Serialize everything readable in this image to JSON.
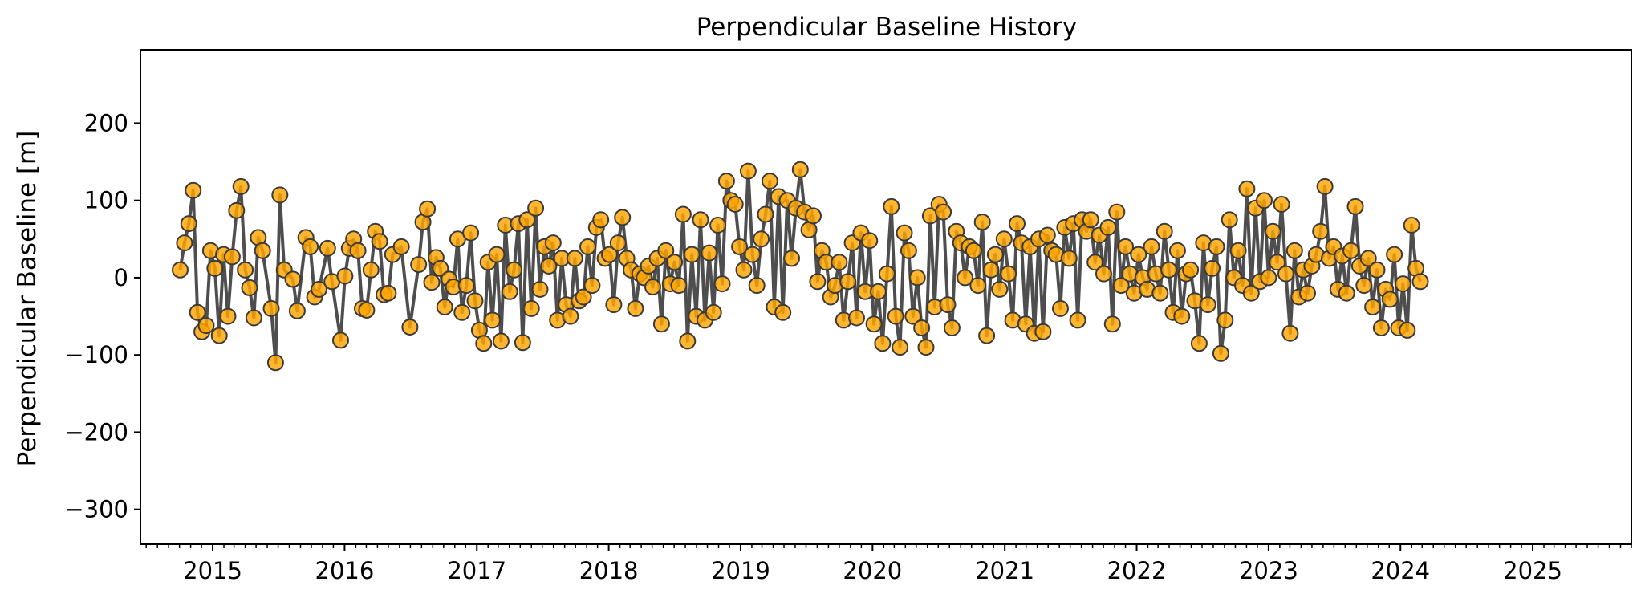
{
  "chart_data": {
    "type": "line",
    "title": "Perpendicular Baseline History",
    "xlabel": "",
    "ylabel": "Perpendicular Baseline [m]",
    "x_ticks": [
      "2015",
      "2016",
      "2017",
      "2018",
      "2019",
      "2020",
      "2021",
      "2022",
      "2023",
      "2024",
      "2025"
    ],
    "y_ticks": [
      200,
      100,
      0,
      -100,
      -200,
      -300
    ],
    "xlim": [
      "2014-06-15",
      "2025-10-01"
    ],
    "ylim": [
      -345,
      295
    ],
    "grid": false,
    "legend": "none",
    "colors": {
      "marker_fill": "#FFA500",
      "marker_edge": "#3a3a3a",
      "line": "#444444"
    },
    "series": [
      {
        "points": [
          [
            "2014-10-03",
            10
          ],
          [
            "2014-10-15",
            45
          ],
          [
            "2014-10-27",
            70
          ],
          [
            "2014-11-08",
            113
          ],
          [
            "2014-11-20",
            -45
          ],
          [
            "2014-12-02",
            -70
          ],
          [
            "2014-12-14",
            -62
          ],
          [
            "2014-12-26",
            35
          ],
          [
            "2015-01-07",
            12
          ],
          [
            "2015-01-19",
            -75
          ],
          [
            "2015-01-31",
            30
          ],
          [
            "2015-02-12",
            -50
          ],
          [
            "2015-02-24",
            27
          ],
          [
            "2015-03-08",
            87
          ],
          [
            "2015-03-20",
            118
          ],
          [
            "2015-04-01",
            10
          ],
          [
            "2015-04-13",
            -13
          ],
          [
            "2015-04-25",
            -52
          ],
          [
            "2015-05-07",
            52
          ],
          [
            "2015-05-19",
            35
          ],
          [
            "2015-06-12",
            -40
          ],
          [
            "2015-06-24",
            -110
          ],
          [
            "2015-07-06",
            107
          ],
          [
            "2015-07-18",
            10
          ],
          [
            "2015-08-11",
            -2
          ],
          [
            "2015-08-23",
            -43
          ],
          [
            "2015-09-16",
            52
          ],
          [
            "2015-09-28",
            40
          ],
          [
            "2015-10-10",
            -25
          ],
          [
            "2015-10-22",
            -15
          ],
          [
            "2015-11-15",
            38
          ],
          [
            "2015-11-27",
            -5
          ],
          [
            "2015-12-21",
            -81
          ],
          [
            "2016-01-02",
            2
          ],
          [
            "2016-01-14",
            38
          ],
          [
            "2016-01-26",
            50
          ],
          [
            "2016-02-07",
            35
          ],
          [
            "2016-02-19",
            -40
          ],
          [
            "2016-03-02",
            -42
          ],
          [
            "2016-03-14",
            10
          ],
          [
            "2016-03-26",
            60
          ],
          [
            "2016-04-07",
            47
          ],
          [
            "2016-04-19",
            -22
          ],
          [
            "2016-05-01",
            -20
          ],
          [
            "2016-05-13",
            30
          ],
          [
            "2016-06-06",
            40
          ],
          [
            "2016-06-30",
            -64
          ],
          [
            "2016-07-24",
            17
          ],
          [
            "2016-08-05",
            72
          ],
          [
            "2016-08-17",
            89
          ],
          [
            "2016-08-29",
            -6
          ],
          [
            "2016-09-10",
            26
          ],
          [
            "2016-09-22",
            12
          ],
          [
            "2016-10-04",
            -38
          ],
          [
            "2016-10-16",
            -2
          ],
          [
            "2016-10-28",
            -12
          ],
          [
            "2016-11-09",
            50
          ],
          [
            "2016-11-21",
            -45
          ],
          [
            "2016-12-03",
            -10
          ],
          [
            "2016-12-15",
            58
          ],
          [
            "2016-12-27",
            -30
          ],
          [
            "2017-01-08",
            -68
          ],
          [
            "2017-01-20",
            -85
          ],
          [
            "2017-02-01",
            20
          ],
          [
            "2017-02-13",
            -55
          ],
          [
            "2017-02-25",
            30
          ],
          [
            "2017-03-09",
            -82
          ],
          [
            "2017-03-21",
            68
          ],
          [
            "2017-04-02",
            -18
          ],
          [
            "2017-04-14",
            10
          ],
          [
            "2017-04-26",
            70
          ],
          [
            "2017-05-08",
            -84
          ],
          [
            "2017-05-20",
            75
          ],
          [
            "2017-06-01",
            -40
          ],
          [
            "2017-06-13",
            90
          ],
          [
            "2017-06-25",
            -15
          ],
          [
            "2017-07-07",
            40
          ],
          [
            "2017-07-19",
            15
          ],
          [
            "2017-07-31",
            45
          ],
          [
            "2017-08-12",
            -55
          ],
          [
            "2017-08-24",
            25
          ],
          [
            "2017-09-05",
            -35
          ],
          [
            "2017-09-17",
            -50
          ],
          [
            "2017-09-29",
            25
          ],
          [
            "2017-10-11",
            -30
          ],
          [
            "2017-10-23",
            -25
          ],
          [
            "2017-11-04",
            40
          ],
          [
            "2017-11-16",
            -10
          ],
          [
            "2017-11-28",
            65
          ],
          [
            "2017-12-10",
            75
          ],
          [
            "2017-12-22",
            25
          ],
          [
            "2018-01-03",
            30
          ],
          [
            "2018-01-15",
            -35
          ],
          [
            "2018-01-27",
            45
          ],
          [
            "2018-02-08",
            78
          ],
          [
            "2018-02-20",
            25
          ],
          [
            "2018-03-04",
            10
          ],
          [
            "2018-03-16",
            -40
          ],
          [
            "2018-03-28",
            5
          ],
          [
            "2018-04-09",
            0
          ],
          [
            "2018-04-21",
            15
          ],
          [
            "2018-05-03",
            -12
          ],
          [
            "2018-05-15",
            25
          ],
          [
            "2018-05-27",
            -60
          ],
          [
            "2018-06-08",
            35
          ],
          [
            "2018-06-20",
            -8
          ],
          [
            "2018-07-02",
            20
          ],
          [
            "2018-07-14",
            -10
          ],
          [
            "2018-07-26",
            82
          ],
          [
            "2018-08-07",
            -82
          ],
          [
            "2018-08-19",
            30
          ],
          [
            "2018-08-31",
            -50
          ],
          [
            "2018-09-12",
            75
          ],
          [
            "2018-09-24",
            -55
          ],
          [
            "2018-10-06",
            32
          ],
          [
            "2018-10-18",
            -45
          ],
          [
            "2018-10-30",
            68
          ],
          [
            "2018-11-11",
            -8
          ],
          [
            "2018-11-23",
            125
          ],
          [
            "2018-12-05",
            100
          ],
          [
            "2018-12-17",
            95
          ],
          [
            "2018-12-29",
            40
          ],
          [
            "2019-01-10",
            10
          ],
          [
            "2019-01-22",
            138
          ],
          [
            "2019-02-03",
            30
          ],
          [
            "2019-02-15",
            -10
          ],
          [
            "2019-02-27",
            50
          ],
          [
            "2019-03-11",
            82
          ],
          [
            "2019-03-23",
            125
          ],
          [
            "2019-04-04",
            -38
          ],
          [
            "2019-04-16",
            105
          ],
          [
            "2019-04-28",
            -45
          ],
          [
            "2019-05-10",
            100
          ],
          [
            "2019-05-22",
            25
          ],
          [
            "2019-06-03",
            90
          ],
          [
            "2019-06-15",
            140
          ],
          [
            "2019-06-27",
            85
          ],
          [
            "2019-07-09",
            62
          ],
          [
            "2019-07-21",
            80
          ],
          [
            "2019-08-02",
            -5
          ],
          [
            "2019-08-14",
            35
          ],
          [
            "2019-08-26",
            20
          ],
          [
            "2019-09-07",
            -25
          ],
          [
            "2019-09-19",
            -10
          ],
          [
            "2019-10-01",
            20
          ],
          [
            "2019-10-13",
            -55
          ],
          [
            "2019-10-25",
            -5
          ],
          [
            "2019-11-06",
            45
          ],
          [
            "2019-11-18",
            -52
          ],
          [
            "2019-11-30",
            58
          ],
          [
            "2019-12-12",
            -18
          ],
          [
            "2019-12-24",
            48
          ],
          [
            "2020-01-05",
            -60
          ],
          [
            "2020-01-17",
            -18
          ],
          [
            "2020-01-29",
            -85
          ],
          [
            "2020-02-10",
            5
          ],
          [
            "2020-02-22",
            92
          ],
          [
            "2020-03-05",
            -50
          ],
          [
            "2020-03-17",
            -90
          ],
          [
            "2020-03-29",
            58
          ],
          [
            "2020-04-10",
            35
          ],
          [
            "2020-04-22",
            -50
          ],
          [
            "2020-05-04",
            0
          ],
          [
            "2020-05-16",
            -65
          ],
          [
            "2020-05-28",
            -90
          ],
          [
            "2020-06-09",
            80
          ],
          [
            "2020-06-21",
            -38
          ],
          [
            "2020-07-03",
            95
          ],
          [
            "2020-07-15",
            85
          ],
          [
            "2020-07-27",
            -35
          ],
          [
            "2020-08-08",
            -65
          ],
          [
            "2020-08-20",
            60
          ],
          [
            "2020-09-01",
            45
          ],
          [
            "2020-09-13",
            0
          ],
          [
            "2020-09-25",
            40
          ],
          [
            "2020-10-07",
            35
          ],
          [
            "2020-10-19",
            -10
          ],
          [
            "2020-10-31",
            72
          ],
          [
            "2020-11-12",
            -75
          ],
          [
            "2020-11-24",
            10
          ],
          [
            "2020-12-06",
            30
          ],
          [
            "2020-12-18",
            -15
          ],
          [
            "2020-12-30",
            50
          ],
          [
            "2021-01-11",
            5
          ],
          [
            "2021-01-23",
            -55
          ],
          [
            "2021-02-04",
            70
          ],
          [
            "2021-02-16",
            45
          ],
          [
            "2021-02-28",
            -60
          ],
          [
            "2021-03-12",
            40
          ],
          [
            "2021-03-24",
            -72
          ],
          [
            "2021-04-05",
            50
          ],
          [
            "2021-04-17",
            -70
          ],
          [
            "2021-04-29",
            55
          ],
          [
            "2021-05-11",
            35
          ],
          [
            "2021-05-23",
            30
          ],
          [
            "2021-06-04",
            -40
          ],
          [
            "2021-06-16",
            65
          ],
          [
            "2021-06-28",
            25
          ],
          [
            "2021-07-10",
            70
          ],
          [
            "2021-07-22",
            -55
          ],
          [
            "2021-08-03",
            75
          ],
          [
            "2021-08-15",
            60
          ],
          [
            "2021-08-27",
            75
          ],
          [
            "2021-09-08",
            20
          ],
          [
            "2021-09-20",
            55
          ],
          [
            "2021-10-02",
            5
          ],
          [
            "2021-10-14",
            65
          ],
          [
            "2021-10-26",
            -60
          ],
          [
            "2021-11-07",
            85
          ],
          [
            "2021-11-19",
            -10
          ],
          [
            "2021-12-01",
            40
          ],
          [
            "2021-12-13",
            5
          ],
          [
            "2021-12-25",
            -20
          ],
          [
            "2022-01-06",
            30
          ],
          [
            "2022-01-18",
            0
          ],
          [
            "2022-01-30",
            -15
          ],
          [
            "2022-02-11",
            40
          ],
          [
            "2022-02-23",
            5
          ],
          [
            "2022-03-07",
            -20
          ],
          [
            "2022-03-19",
            60
          ],
          [
            "2022-03-31",
            10
          ],
          [
            "2022-04-12",
            -45
          ],
          [
            "2022-04-24",
            35
          ],
          [
            "2022-05-06",
            -50
          ],
          [
            "2022-05-18",
            5
          ],
          [
            "2022-05-30",
            10
          ],
          [
            "2022-06-11",
            -30
          ],
          [
            "2022-06-23",
            -85
          ],
          [
            "2022-07-05",
            45
          ],
          [
            "2022-07-17",
            -35
          ],
          [
            "2022-07-29",
            12
          ],
          [
            "2022-08-10",
            40
          ],
          [
            "2022-08-22",
            -98
          ],
          [
            "2022-09-03",
            -55
          ],
          [
            "2022-09-15",
            75
          ],
          [
            "2022-09-27",
            0
          ],
          [
            "2022-10-09",
            35
          ],
          [
            "2022-10-21",
            -10
          ],
          [
            "2022-11-02",
            115
          ],
          [
            "2022-11-14",
            -20
          ],
          [
            "2022-11-26",
            90
          ],
          [
            "2022-12-08",
            -5
          ],
          [
            "2022-12-20",
            100
          ],
          [
            "2023-01-01",
            0
          ],
          [
            "2023-01-13",
            60
          ],
          [
            "2023-01-25",
            20
          ],
          [
            "2023-02-06",
            95
          ],
          [
            "2023-02-18",
            5
          ],
          [
            "2023-03-02",
            -72
          ],
          [
            "2023-03-14",
            35
          ],
          [
            "2023-03-26",
            -25
          ],
          [
            "2023-04-07",
            10
          ],
          [
            "2023-04-19",
            -20
          ],
          [
            "2023-05-01",
            15
          ],
          [
            "2023-05-13",
            30
          ],
          [
            "2023-05-25",
            60
          ],
          [
            "2023-06-06",
            118
          ],
          [
            "2023-06-18",
            25
          ],
          [
            "2023-06-30",
            40
          ],
          [
            "2023-07-12",
            -15
          ],
          [
            "2023-07-24",
            28
          ],
          [
            "2023-08-05",
            -20
          ],
          [
            "2023-08-17",
            35
          ],
          [
            "2023-08-29",
            92
          ],
          [
            "2023-09-10",
            15
          ],
          [
            "2023-09-22",
            -10
          ],
          [
            "2023-10-04",
            25
          ],
          [
            "2023-10-16",
            -38
          ],
          [
            "2023-10-28",
            10
          ],
          [
            "2023-11-09",
            -65
          ],
          [
            "2023-11-21",
            -15
          ],
          [
            "2023-12-03",
            -28
          ],
          [
            "2023-12-15",
            30
          ],
          [
            "2023-12-27",
            -65
          ],
          [
            "2024-01-08",
            -8
          ],
          [
            "2024-01-20",
            -68
          ],
          [
            "2024-02-01",
            68
          ],
          [
            "2024-02-13",
            12
          ],
          [
            "2024-02-25",
            -5
          ]
        ]
      }
    ]
  }
}
